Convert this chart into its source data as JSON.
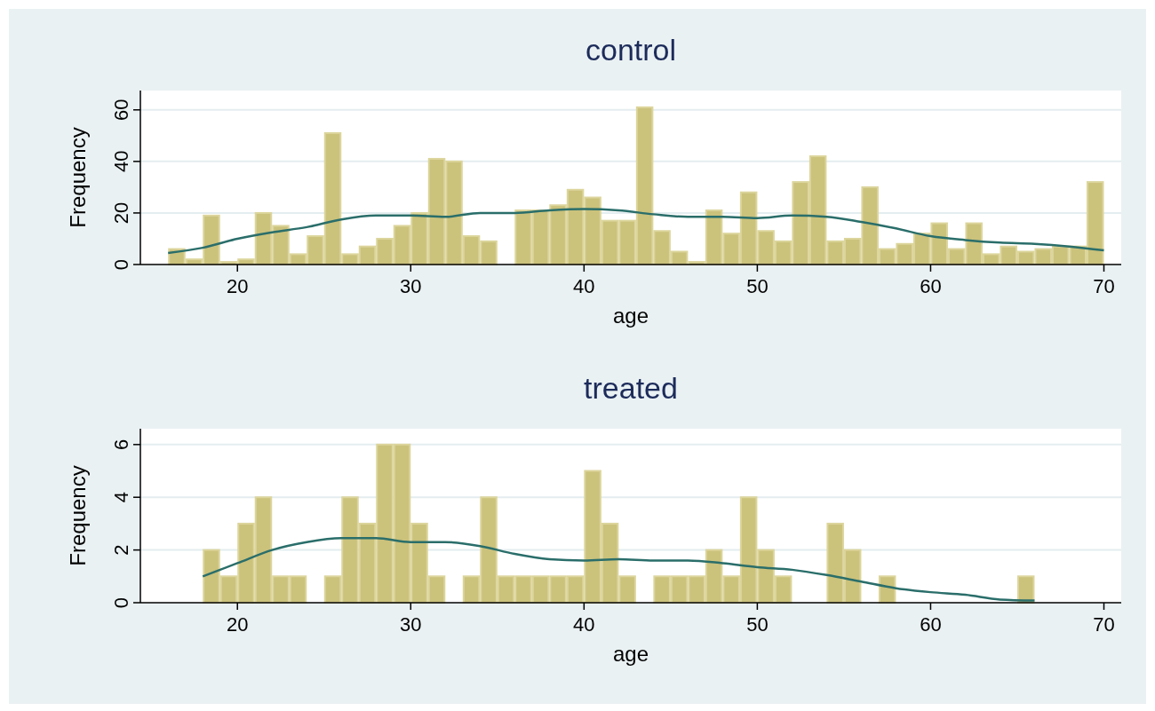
{
  "chart_data": [
    {
      "type": "histogram",
      "title": "control",
      "xlabel": "age",
      "ylabel": "Frequency",
      "xlim": [
        14.4,
        71
      ],
      "xticks": [
        20,
        30,
        40,
        50,
        60,
        70
      ],
      "ylim": [
        0,
        67.5
      ],
      "yticks": [
        0,
        20,
        40,
        60
      ],
      "grid": "y",
      "series": [
        {
          "color": "#cbc27c",
          "bins": [
            16,
            17,
            18,
            19,
            20,
            21,
            22,
            23,
            24,
            25,
            26,
            27,
            28,
            29,
            30,
            31,
            32,
            33,
            34,
            35,
            36,
            37,
            38,
            39,
            40,
            41,
            42,
            43,
            44,
            45,
            46,
            47,
            48,
            49,
            50,
            51,
            52,
            53,
            54,
            55,
            56,
            57,
            58,
            59,
            60,
            61,
            62,
            63,
            64,
            65,
            66,
            67,
            68,
            69,
            70
          ],
          "values": [
            6,
            2,
            19,
            1,
            2,
            20,
            15,
            4,
            11,
            51,
            4,
            7,
            10,
            15,
            20,
            41,
            40,
            11,
            9,
            0,
            21,
            21,
            23,
            29,
            26,
            17,
            17,
            61,
            13,
            5,
            1,
            21,
            12,
            28,
            13,
            9,
            32,
            42,
            9,
            10,
            30,
            6,
            8,
            12,
            16,
            6,
            16,
            4,
            7,
            5,
            6,
            7,
            7,
            32
          ]
        },
        {
          "type": "line",
          "color": "#2a6e6a",
          "x": [
            16,
            18,
            20,
            22,
            24,
            26,
            28,
            30,
            32,
            34,
            36,
            38,
            40,
            42,
            44,
            46,
            48,
            50,
            52,
            54,
            56,
            58,
            60,
            62,
            64,
            66,
            68,
            70
          ],
          "values": [
            4.5,
            6.5,
            10,
            12.5,
            14.5,
            17.5,
            19,
            19,
            18.5,
            20,
            20,
            21,
            21.5,
            21,
            19.5,
            18.5,
            18.5,
            18,
            19,
            18.5,
            16.5,
            14,
            11,
            9.5,
            8.5,
            8,
            7,
            5.5
          ]
        }
      ]
    },
    {
      "type": "histogram",
      "title": "treated",
      "xlabel": "age",
      "ylabel": "Frequency",
      "xlim": [
        14.4,
        71
      ],
      "xticks": [
        20,
        30,
        40,
        50,
        60,
        70
      ],
      "ylim": [
        0,
        6.6
      ],
      "yticks": [
        0,
        2,
        4,
        6
      ],
      "grid": "y",
      "series": [
        {
          "color": "#cbc27c",
          "bins": [
            18,
            19,
            20,
            21,
            22,
            23,
            24,
            25,
            26,
            27,
            28,
            29,
            30,
            31,
            32,
            33,
            34,
            35,
            36,
            37,
            38,
            39,
            40,
            41,
            42,
            43,
            44,
            45,
            46,
            47,
            48,
            49,
            50,
            51,
            52,
            53,
            54,
            55,
            56,
            57,
            58,
            59,
            60,
            61,
            62,
            63,
            64,
            65,
            66
          ],
          "values": [
            2,
            1,
            3,
            4,
            1,
            1,
            0,
            1,
            4,
            3,
            6,
            6,
            3,
            1,
            0,
            1,
            4,
            1,
            1,
            1,
            1,
            1,
            5,
            3,
            1,
            0,
            1,
            1,
            1,
            2,
            1,
            4,
            2,
            1,
            0,
            0,
            3,
            2,
            0,
            1,
            0,
            0,
            0,
            0,
            0,
            0,
            0,
            1
          ]
        },
        {
          "type": "line",
          "color": "#2a6e6a",
          "x": [
            18,
            20,
            22,
            24,
            26,
            28,
            30,
            32,
            34,
            36,
            38,
            40,
            42,
            44,
            46,
            48,
            50,
            52,
            54,
            56,
            58,
            60,
            62,
            64,
            66
          ],
          "values": [
            1,
            1.5,
            2,
            2.3,
            2.45,
            2.45,
            2.3,
            2.3,
            2.15,
            1.85,
            1.65,
            1.6,
            1.65,
            1.6,
            1.6,
            1.5,
            1.35,
            1.25,
            1.05,
            0.8,
            0.55,
            0.4,
            0.3,
            0.12,
            0.08
          ]
        }
      ]
    }
  ]
}
